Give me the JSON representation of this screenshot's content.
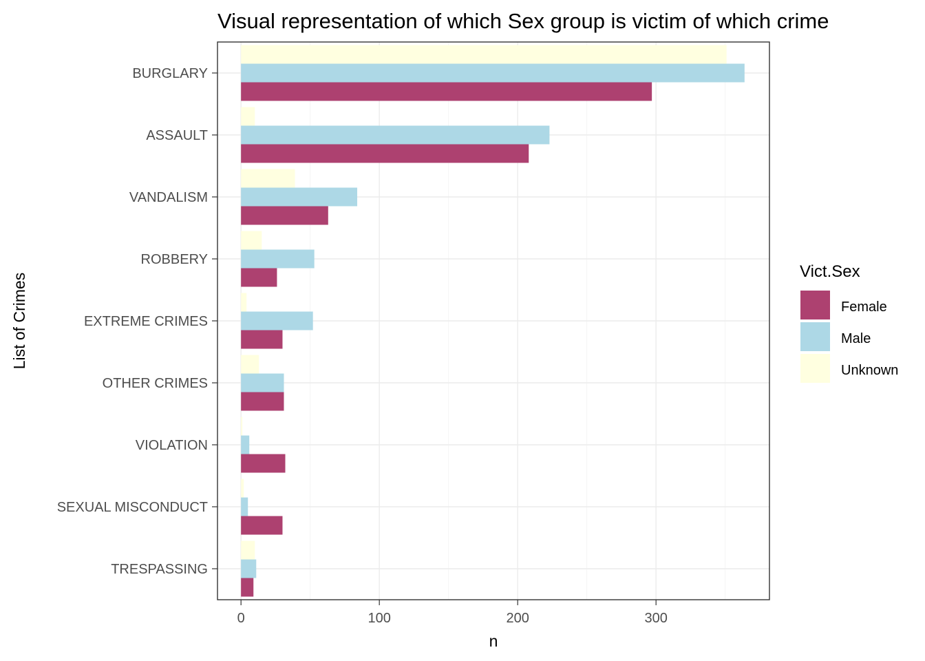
{
  "chart_data": {
    "type": "bar",
    "orientation": "horizontal",
    "title": "Visual representation of which Sex group is victim of which crime",
    "xlabel": "n",
    "ylabel": "List of Crimes",
    "xlim": [
      -17,
      382
    ],
    "x_ticks": [
      0,
      100,
      200,
      300
    ],
    "grid": true,
    "categories": [
      "BURGLARY",
      "ASSAULT",
      "VANDALISM",
      "ROBBERY",
      "EXTREME CRIMES",
      "OTHER CRIMES",
      "VIOLATION",
      "SEXUAL MISCONDUCT",
      "TRESPASSING"
    ],
    "series": [
      {
        "name": "Female",
        "color": "#ad4170",
        "values": [
          297,
          208,
          63,
          26,
          30,
          31,
          32,
          30,
          9
        ]
      },
      {
        "name": "Male",
        "color": "#add8e6",
        "values": [
          364,
          223,
          84,
          53,
          52,
          31,
          6,
          5,
          11
        ]
      },
      {
        "name": "Unknown",
        "color": "#ffffe0",
        "values": [
          351,
          10,
          39,
          15,
          4,
          13,
          1,
          2,
          10
        ]
      }
    ],
    "legend": {
      "title": "Vict.Sex",
      "position": "right"
    }
  }
}
